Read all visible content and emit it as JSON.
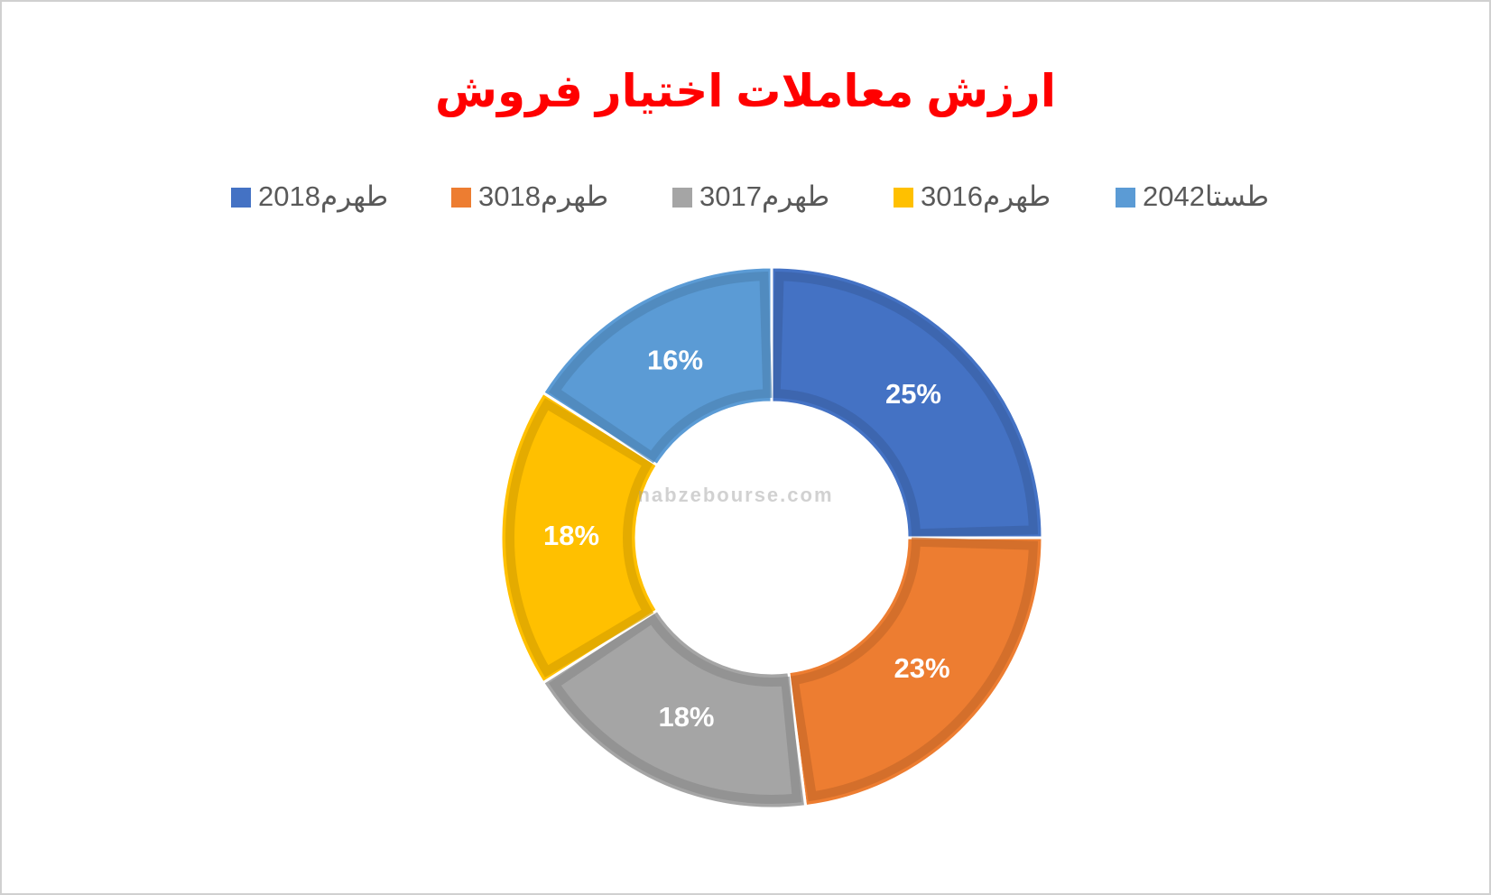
{
  "chart_data": {
    "type": "donut",
    "title": "ارزش معاملات اختیار فروش",
    "watermark": "nabzebourse.com",
    "categories": [
      "طهرم2018",
      "طهرم3018",
      "طهرم3017",
      "طهرم3016",
      "طستا2042"
    ],
    "values": [
      25,
      23,
      18,
      18,
      16
    ],
    "value_labels": [
      "25%",
      "23%",
      "18%",
      "18%",
      "16%"
    ],
    "colors": [
      "#4472c4",
      "#ed7d31",
      "#a5a5a5",
      "#ffc000",
      "#5b9bd5"
    ],
    "legend": "top"
  }
}
